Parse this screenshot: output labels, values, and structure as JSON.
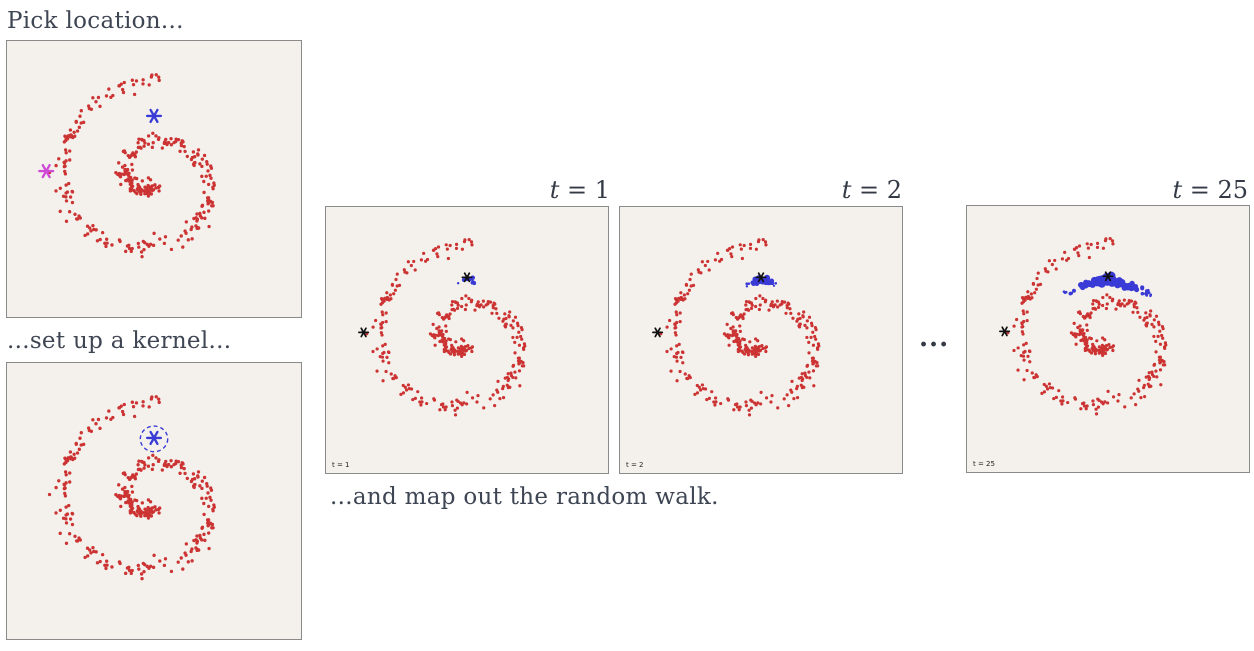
{
  "captions": {
    "pick": "Pick location...",
    "kernel": "...set up a kernel...",
    "walk": "...and map out the random walk."
  },
  "time_labels": [
    {
      "var": "t",
      "rest": " = 1"
    },
    {
      "var": "t",
      "rest": " = 2"
    },
    {
      "var": "t",
      "rest": " = 25"
    }
  ],
  "insets": {
    "t1": "t = 1",
    "t2": "t = 2",
    "t25": "t = 25"
  },
  "ellipsis": "...",
  "colors": {
    "points": "#cc3333",
    "walk": "#3a3ad6",
    "start_marker": "#3a3ad6",
    "alt_marker": "#d04ad8",
    "walker_marker": "#111111",
    "panel_bg": "#f4f1ec"
  }
}
